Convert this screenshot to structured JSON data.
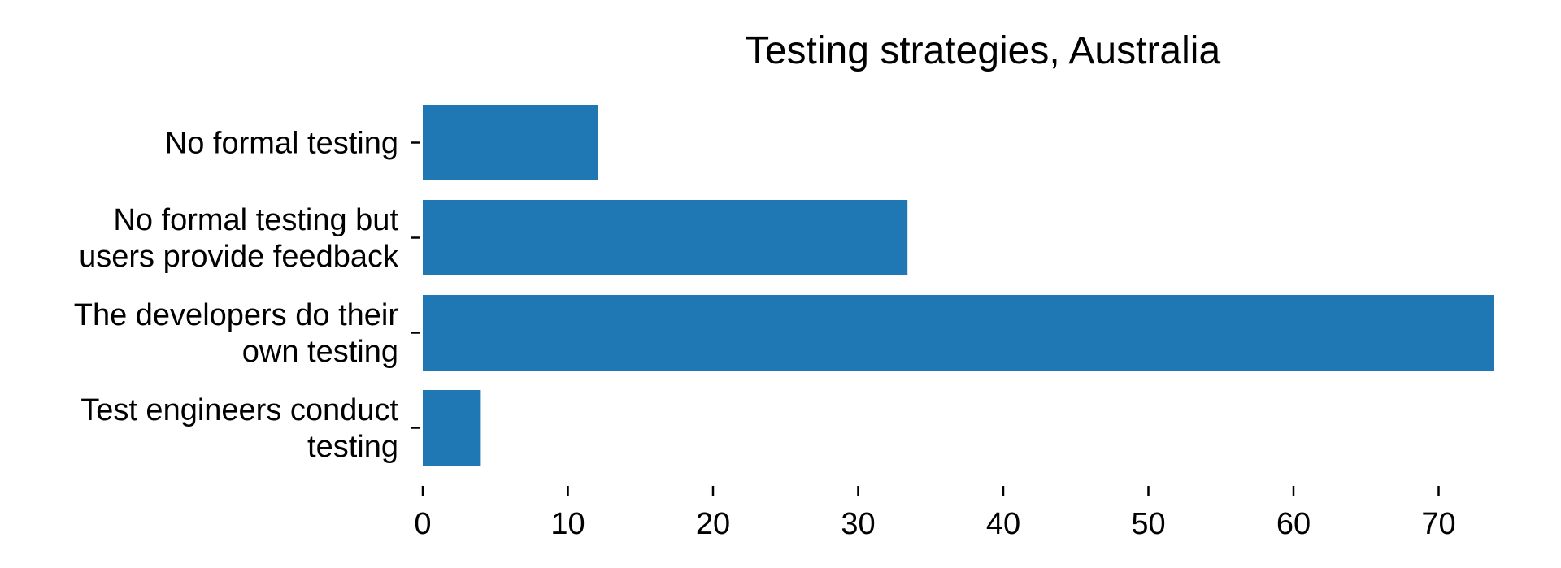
{
  "chart_data": {
    "type": "bar",
    "orientation": "horizontal",
    "title": "Testing strategies, Australia",
    "xlabel": "",
    "ylabel": "",
    "categories": [
      [
        "No formal testing"
      ],
      [
        "No formal testing but",
        "users provide feedback"
      ],
      [
        "The developers do their",
        "own testing"
      ],
      [
        "Test engineers conduct",
        "testing"
      ]
    ],
    "values": [
      12.1,
      33.4,
      73.8,
      4.0
    ],
    "xlim": [
      0,
      74
    ],
    "xticks": [
      0,
      10,
      20,
      30,
      40,
      50,
      60,
      70
    ],
    "grid": false,
    "legend": "none",
    "bar_color": "#1f77b4"
  }
}
